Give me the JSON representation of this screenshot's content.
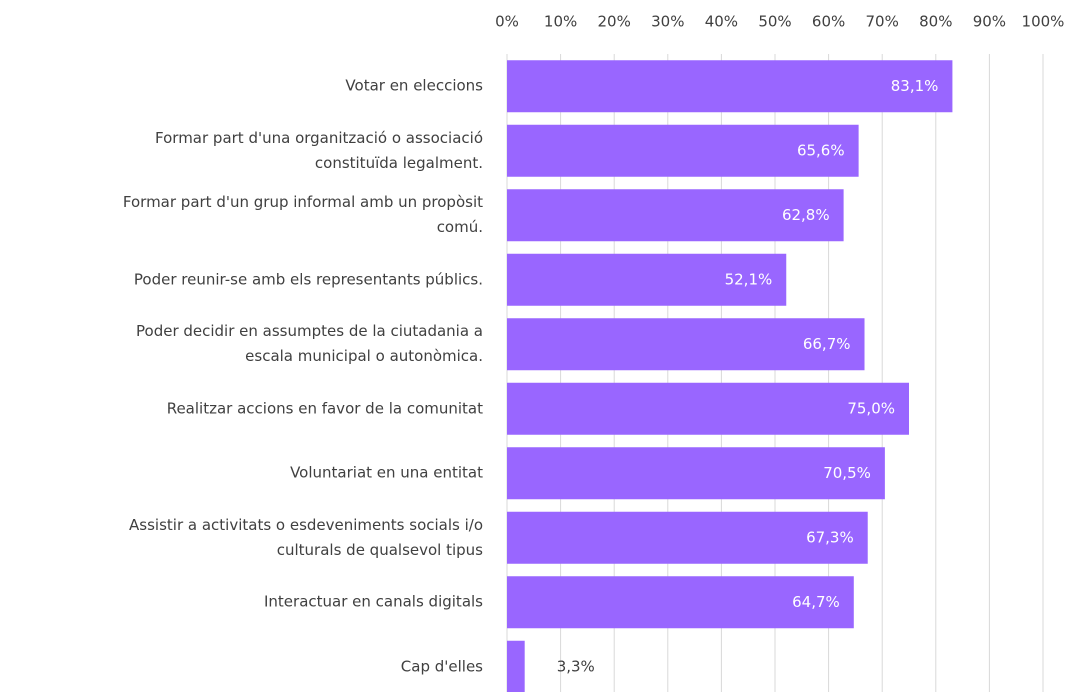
{
  "chart_data": {
    "type": "bar",
    "orientation": "horizontal",
    "categories": [
      "Votar en eleccions",
      "Formar part  d'una organització  o associació\nconstituïda legalment.",
      "Formar part  d'un grup informal amb un propòsit\ncomú.",
      "Poder reunir-se amb els representants públics.",
      "Poder decidir en assumptes de la ciutadania a\nescala municipal o autonòmica.",
      "Realitzar accions en favor de la comunitat",
      "Voluntariat en una entitat",
      "Assistir a activitats o esdeveniments socials i/o\nculturals de qualsevol tipus",
      "Interactuar en canals digitals",
      "Cap d'elles"
    ],
    "values": [
      83.1,
      65.6,
      62.8,
      52.1,
      66.7,
      75.0,
      70.5,
      67.3,
      64.7,
      3.3
    ],
    "value_labels": [
      "83,1%",
      "65,6%",
      "62,8%",
      "52,1%",
      "66,7%",
      "75,0%",
      "70,5%",
      "67,3%",
      "64,7%",
      "3,3%"
    ],
    "color": "#9966ff",
    "xlim": [
      0,
      100
    ],
    "xticks": [
      {
        "value": 0,
        "label": "0%"
      },
      {
        "value": 10,
        "label": "10%"
      },
      {
        "value": 20,
        "label": "20%"
      },
      {
        "value": 30,
        "label": "30%"
      },
      {
        "value": 40,
        "label": "40%"
      },
      {
        "value": 50,
        "label": "50%"
      },
      {
        "value": 60,
        "label": "60%"
      },
      {
        "value": 70,
        "label": "70%"
      },
      {
        "value": 80,
        "label": "80%"
      },
      {
        "value": 90,
        "label": "90%"
      },
      {
        "value": 100,
        "label": "100%"
      }
    ],
    "grid": true
  }
}
